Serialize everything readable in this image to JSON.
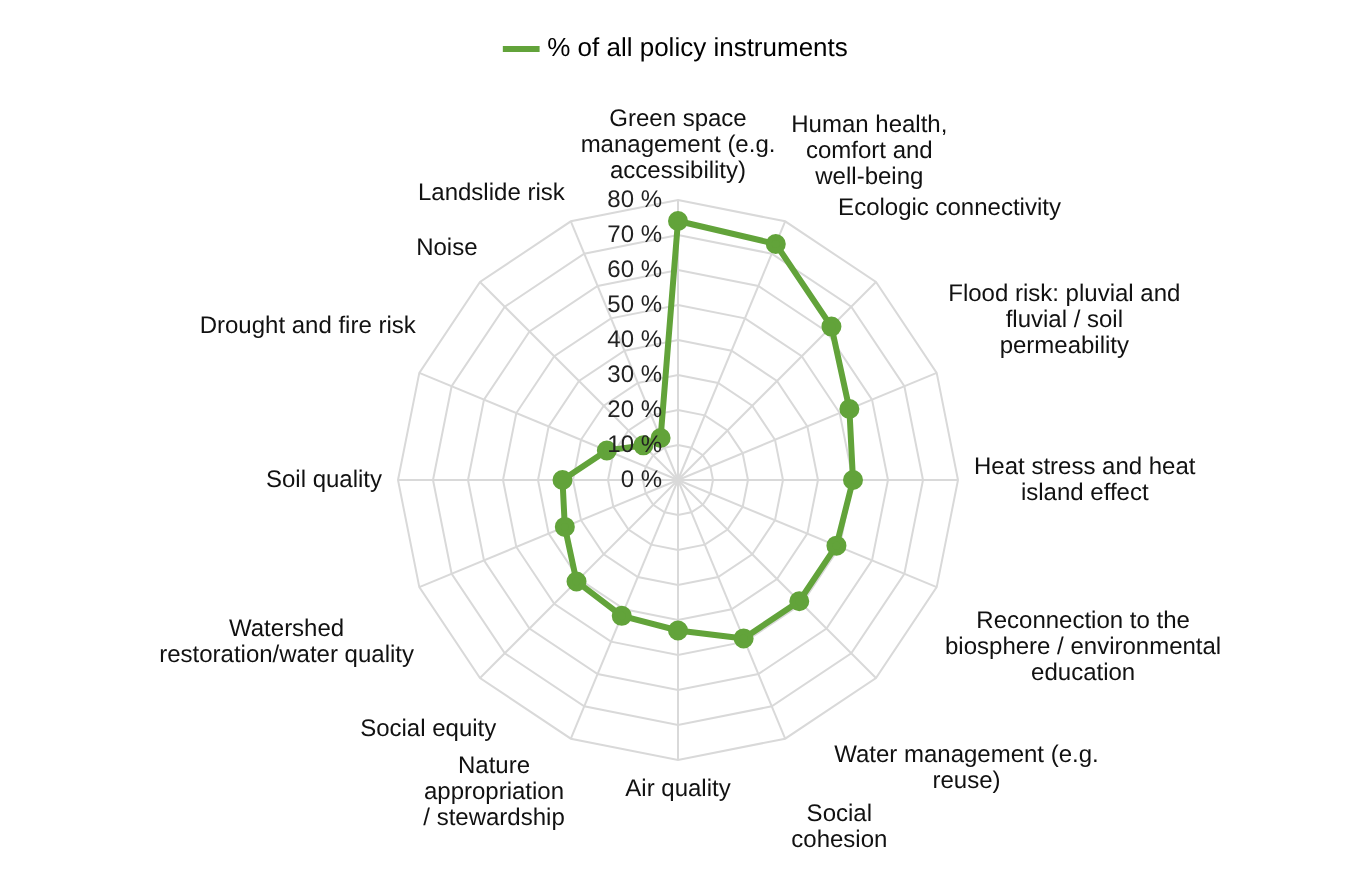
{
  "chart_data": {
    "type": "radar",
    "categories": [
      "Green space management (e.g. accessibility)",
      "Human health, comfort and well-being",
      "Ecologic connectivity",
      "Flood risk: pluvial and fluvial / soil permeability",
      "Heat stress and heat island effect",
      "Reconnection to the biosphere / environmental education",
      "Water management (e.g. reuse)",
      "Social cohesion",
      "Air quality",
      "Nature appropriation / stewardship",
      "Social equity",
      "Watershed restoration/water quality",
      "Soil quality",
      "Drought and fire risk",
      "Noise",
      "Landslide risk"
    ],
    "series": [
      {
        "name": "% of all policy instruments",
        "color": "#62a33a",
        "values": [
          74,
          73,
          62,
          53,
          50,
          49,
          49,
          49,
          43,
          42,
          41,
          35,
          33,
          22,
          14,
          13
        ]
      }
    ],
    "ylim": [
      0,
      80
    ],
    "yticks": [
      {
        "value": 0,
        "label": "0 %"
      },
      {
        "value": 10,
        "label": "10 %"
      },
      {
        "value": 20,
        "label": "20 %"
      },
      {
        "value": 30,
        "label": "30 %"
      },
      {
        "value": 40,
        "label": "40 %"
      },
      {
        "value": 50,
        "label": "50 %"
      },
      {
        "value": 60,
        "label": "60 %"
      },
      {
        "value": 70,
        "label": "70 %"
      },
      {
        "value": 80,
        "label": "80 %"
      }
    ],
    "grid": true,
    "legend": "top",
    "marker": "circle",
    "line_style": "solid"
  }
}
